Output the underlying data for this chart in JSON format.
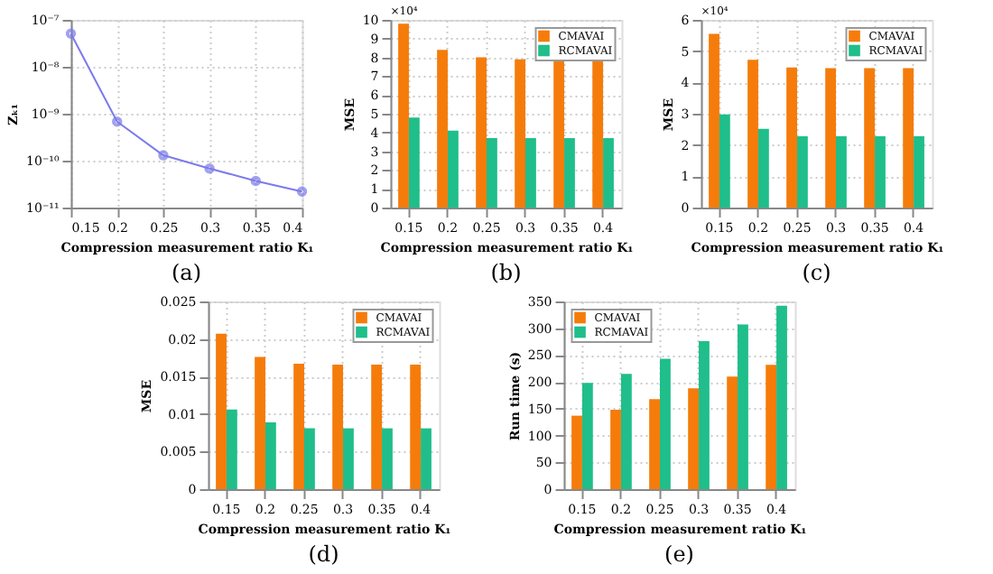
{
  "chart_data": [
    {
      "type": "line",
      "xlabel": "Compression measurement ratio K₁",
      "ylabel": "Zₖ₁",
      "x": [
        0.15,
        0.2,
        0.25,
        0.3,
        0.35,
        0.4
      ],
      "series": [
        {
          "color": "#7b7bea",
          "values": [
            5.1e-08,
            6.8e-10,
            1.3e-10,
            6.8e-11,
            3.7e-11,
            2.2e-11
          ]
        }
      ],
      "log": true,
      "xlim": [
        0.15,
        0.4
      ],
      "xticks": [
        0.15,
        0.2,
        0.25,
        0.3,
        0.35,
        0.4
      ],
      "ylim": [
        1e-11,
        1e-07
      ],
      "yticks": [
        {
          "value": 1e-11,
          "label": "10⁻¹¹"
        },
        {
          "value": 1e-10,
          "label": "10⁻¹⁰"
        },
        {
          "value": 1e-09,
          "label": "10⁻⁹"
        },
        {
          "value": 1e-08,
          "label": "10⁻⁸"
        },
        {
          "value": 1e-07,
          "label": "10⁻⁷"
        }
      ],
      "grid": true,
      "marker": "circle",
      "line_style": "solid",
      "annotations": [
        "(a)"
      ]
    },
    {
      "type": "bar",
      "xlabel": "Compression measurement ratio K₁",
      "ylabel": "MSE",
      "categories": [
        "0.15",
        "0.2",
        "0.25",
        "0.3",
        "0.35",
        "0.4"
      ],
      "series": [
        {
          "name": "CMAVAI",
          "color": "#f57c0a",
          "values": [
            9.8,
            8.4,
            8.0,
            7.9,
            7.9,
            7.9
          ]
        },
        {
          "name": "RCMAVAI",
          "color": "#1fbe8a",
          "values": [
            4.8,
            4.1,
            3.7,
            3.7,
            3.7,
            3.7
          ]
        }
      ],
      "ylim": [
        0,
        10
      ],
      "yticks": [
        0,
        1,
        2,
        3,
        4,
        5,
        6,
        7,
        8,
        9,
        10
      ],
      "grid": true,
      "legend": "top right",
      "annotations": [
        "×10⁴",
        "(b)"
      ]
    },
    {
      "type": "bar",
      "xlabel": "Compression measurement ratio K₁",
      "ylabel": "MSE",
      "categories": [
        "0.15",
        "0.2",
        "0.25",
        "0.3",
        "0.35",
        "0.4"
      ],
      "series": [
        {
          "name": "CMAVAI",
          "color": "#f57c0a",
          "values": [
            5.55,
            4.72,
            4.48,
            4.46,
            4.46,
            4.46
          ]
        },
        {
          "name": "RCMAVAI",
          "color": "#1fbe8a",
          "values": [
            2.98,
            2.52,
            2.28,
            2.28,
            2.28,
            2.28
          ]
        }
      ],
      "ylim": [
        0,
        6
      ],
      "yticks": [
        0,
        1,
        2,
        3,
        4,
        5,
        6
      ],
      "grid": true,
      "legend": "top right",
      "annotations": [
        "×10⁴",
        "(c)"
      ]
    },
    {
      "type": "bar",
      "xlabel": "Compression measurement ratio K₁",
      "ylabel": "MSE",
      "categories": [
        "0.15",
        "0.2",
        "0.25",
        "0.3",
        "0.35",
        "0.4"
      ],
      "series": [
        {
          "name": "CMAVAI",
          "color": "#f57c0a",
          "values": [
            0.0207,
            0.0176,
            0.0167,
            0.0166,
            0.0166,
            0.0166
          ]
        },
        {
          "name": "RCMAVAI",
          "color": "#1fbe8a",
          "values": [
            0.0106,
            0.0089,
            0.0081,
            0.0081,
            0.0081,
            0.0081
          ]
        }
      ],
      "ylim": [
        0,
        0.025
      ],
      "yticks": [
        0,
        0.005,
        0.01,
        0.015,
        0.02,
        0.025
      ],
      "grid": true,
      "legend": "top right",
      "annotations": [
        "(d)"
      ]
    },
    {
      "type": "bar",
      "xlabel": "Compression measurement ratio K₁",
      "ylabel": "Run time (s)",
      "categories": [
        "0.15",
        "0.2",
        "0.25",
        "0.3",
        "0.35",
        "0.4"
      ],
      "series": [
        {
          "name": "CMAVAI",
          "color": "#f57c0a",
          "values": [
            137,
            148,
            168,
            188,
            210,
            232
          ]
        },
        {
          "name": "RCMAVAI",
          "color": "#1fbe8a",
          "values": [
            198,
            215,
            243,
            276,
            307,
            342
          ]
        }
      ],
      "ylim": [
        0,
        350
      ],
      "yticks": [
        0,
        50,
        100,
        150,
        200,
        250,
        300,
        350
      ],
      "grid": true,
      "legend": "top left",
      "annotations": [
        "(e)"
      ]
    }
  ]
}
